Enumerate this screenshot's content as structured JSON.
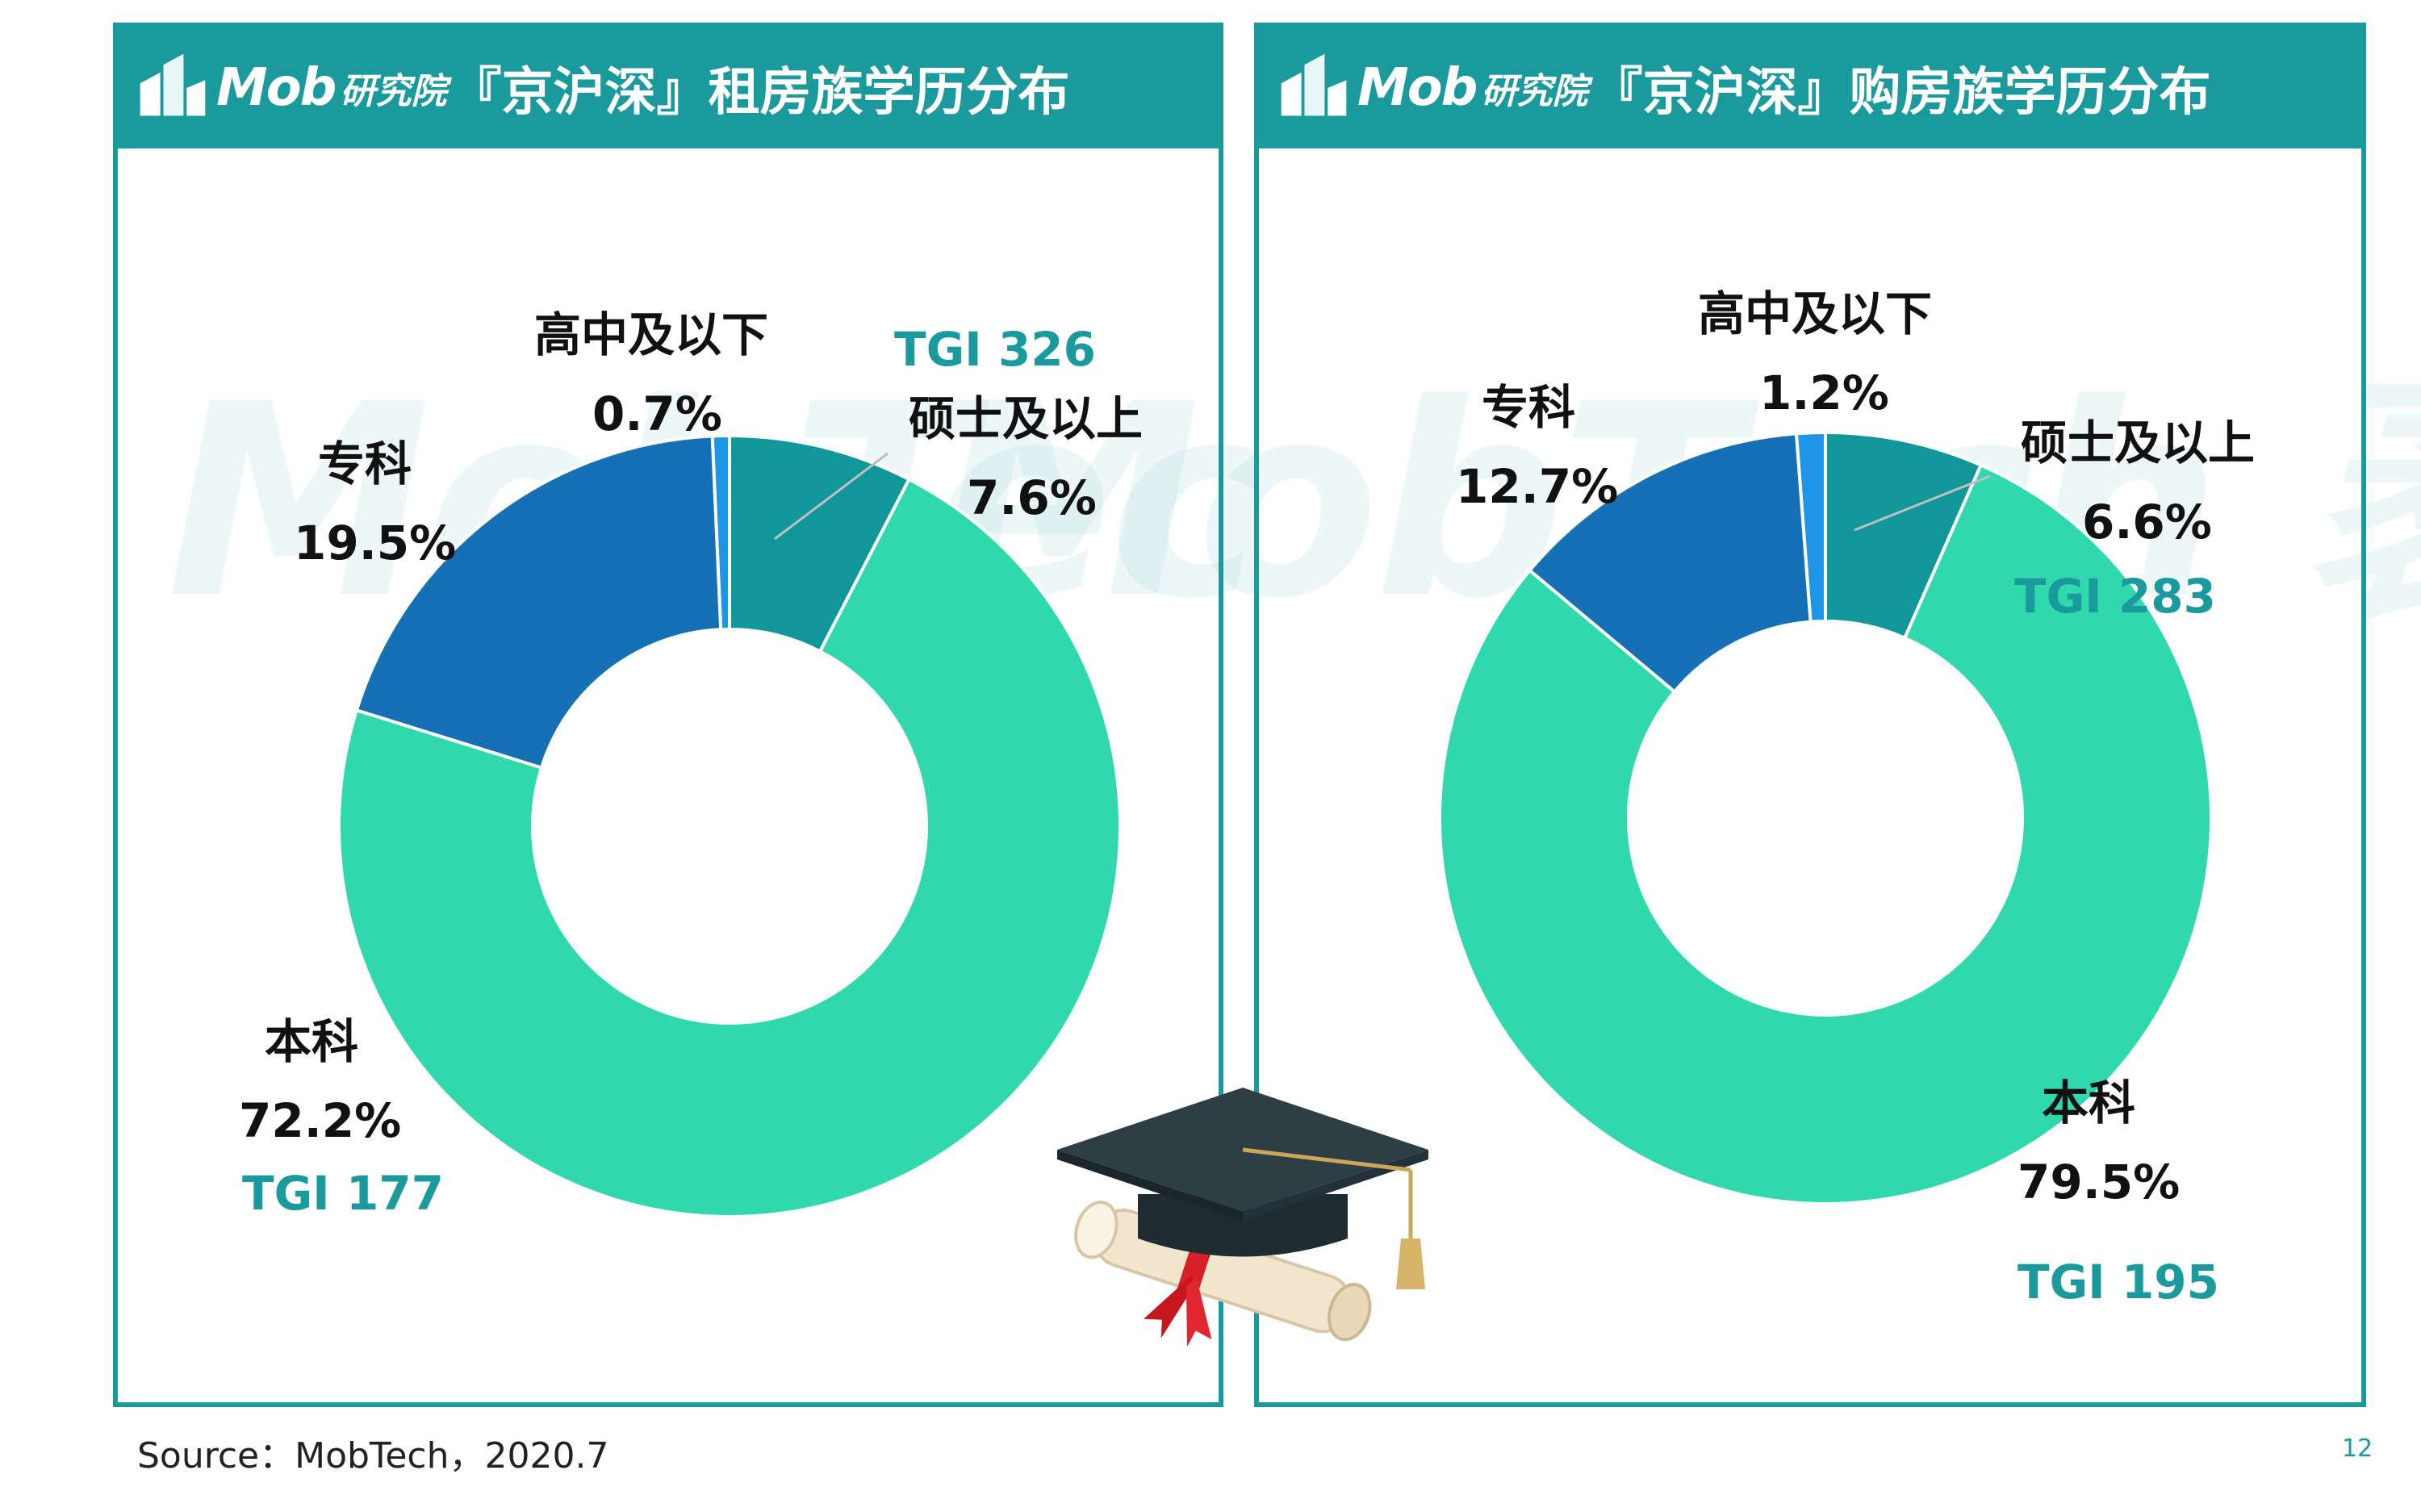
{
  "brand": "Mob",
  "brand_sub": "研究院",
  "watermark": "MobTech 袤博",
  "panels": [
    {
      "title": "『京沪深』租房族学历分布",
      "labels": {
        "master_name": "硕士及以上",
        "master_pct": "7.6%",
        "master_tgi": "TGI 326",
        "hs_name": "高中及以下",
        "hs_pct": "0.7%",
        "zk_name": "专科",
        "zk_pct": "19.5%",
        "bk_name": "本科",
        "bk_pct": "72.2%",
        "bk_tgi": "TGI 177"
      }
    },
    {
      "title": "『京沪深』购房族学历分布",
      "labels": {
        "hs_name": "高中及以下",
        "hs_pct": "1.2%",
        "zk_name": "专科",
        "zk_pct": "12.7%",
        "master_name": "硕士及以上",
        "master_pct": "6.6%",
        "master_tgi": "TGI 283",
        "bk_name": "本科",
        "bk_pct": "79.5%",
        "bk_tgi": "TGI 195"
      }
    }
  ],
  "chart_data": [
    {
      "type": "pie",
      "title": "『京沪深』租房族学历分布",
      "categories": [
        "硕士及以上",
        "本科",
        "专科",
        "高中及以下"
      ],
      "values": [
        7.6,
        72.2,
        19.5,
        0.7
      ],
      "tgi": {
        "硕士及以上": 326,
        "本科": 177
      },
      "colors": [
        "#11979a",
        "#2fd8ad",
        "#1670b5",
        "#1e95e6"
      ]
    },
    {
      "type": "pie",
      "title": "『京沪深』购房族学历分布",
      "categories": [
        "硕士及以上",
        "本科",
        "专科",
        "高中及以下"
      ],
      "values": [
        6.6,
        79.5,
        12.7,
        1.2
      ],
      "tgi": {
        "硕士及以上": 283,
        "本科": 195
      },
      "colors": [
        "#11979a",
        "#2fd8ad",
        "#1670b5",
        "#1e95e6"
      ]
    }
  ],
  "colors": {
    "accent": "#1a9a9c",
    "ring_bg": "#ffffff"
  },
  "footer": {
    "source": "Source：MobTech，2020.7",
    "page": "12"
  },
  "decoration": "graduation-cap-icon"
}
